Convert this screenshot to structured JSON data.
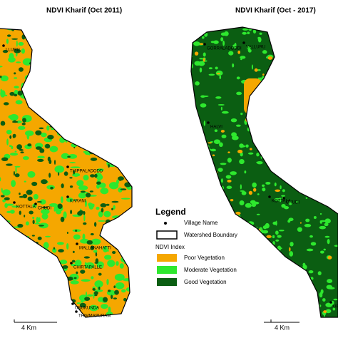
{
  "left_map": {
    "title": "NDVI Kharif (Oct 2011)",
    "villages": [
      "LLURU",
      "THIPPALADODD",
      "KOTTALA",
      "CHUDI",
      "KARANI",
      "MALLANAHATTI",
      "CHIRTAPALLE",
      "URUKUNDA",
      "THIMMAPURAM"
    ],
    "scale_label": "4 Km"
  },
  "right_map": {
    "title": "NDVI Kharif  (Oct - 2017)",
    "villages": [
      "GORRALADODDI",
      "VALLURU",
      "HALVI",
      "KOTTALA",
      "CHUDI",
      "URU"
    ],
    "scale_label": "4 Km"
  },
  "legend": {
    "title": "Legend",
    "village_symbol": "Village Name",
    "boundary_symbol": "Watershed Boundary",
    "ndvi_heading": "NDVI Index",
    "classes": [
      {
        "label": "Poor Vegetation",
        "color": "#f5a700"
      },
      {
        "label": "Moderate Vegetation",
        "color": "#2ee82e"
      },
      {
        "label": "Good Vegetation",
        "color": "#0b5e12"
      }
    ]
  }
}
